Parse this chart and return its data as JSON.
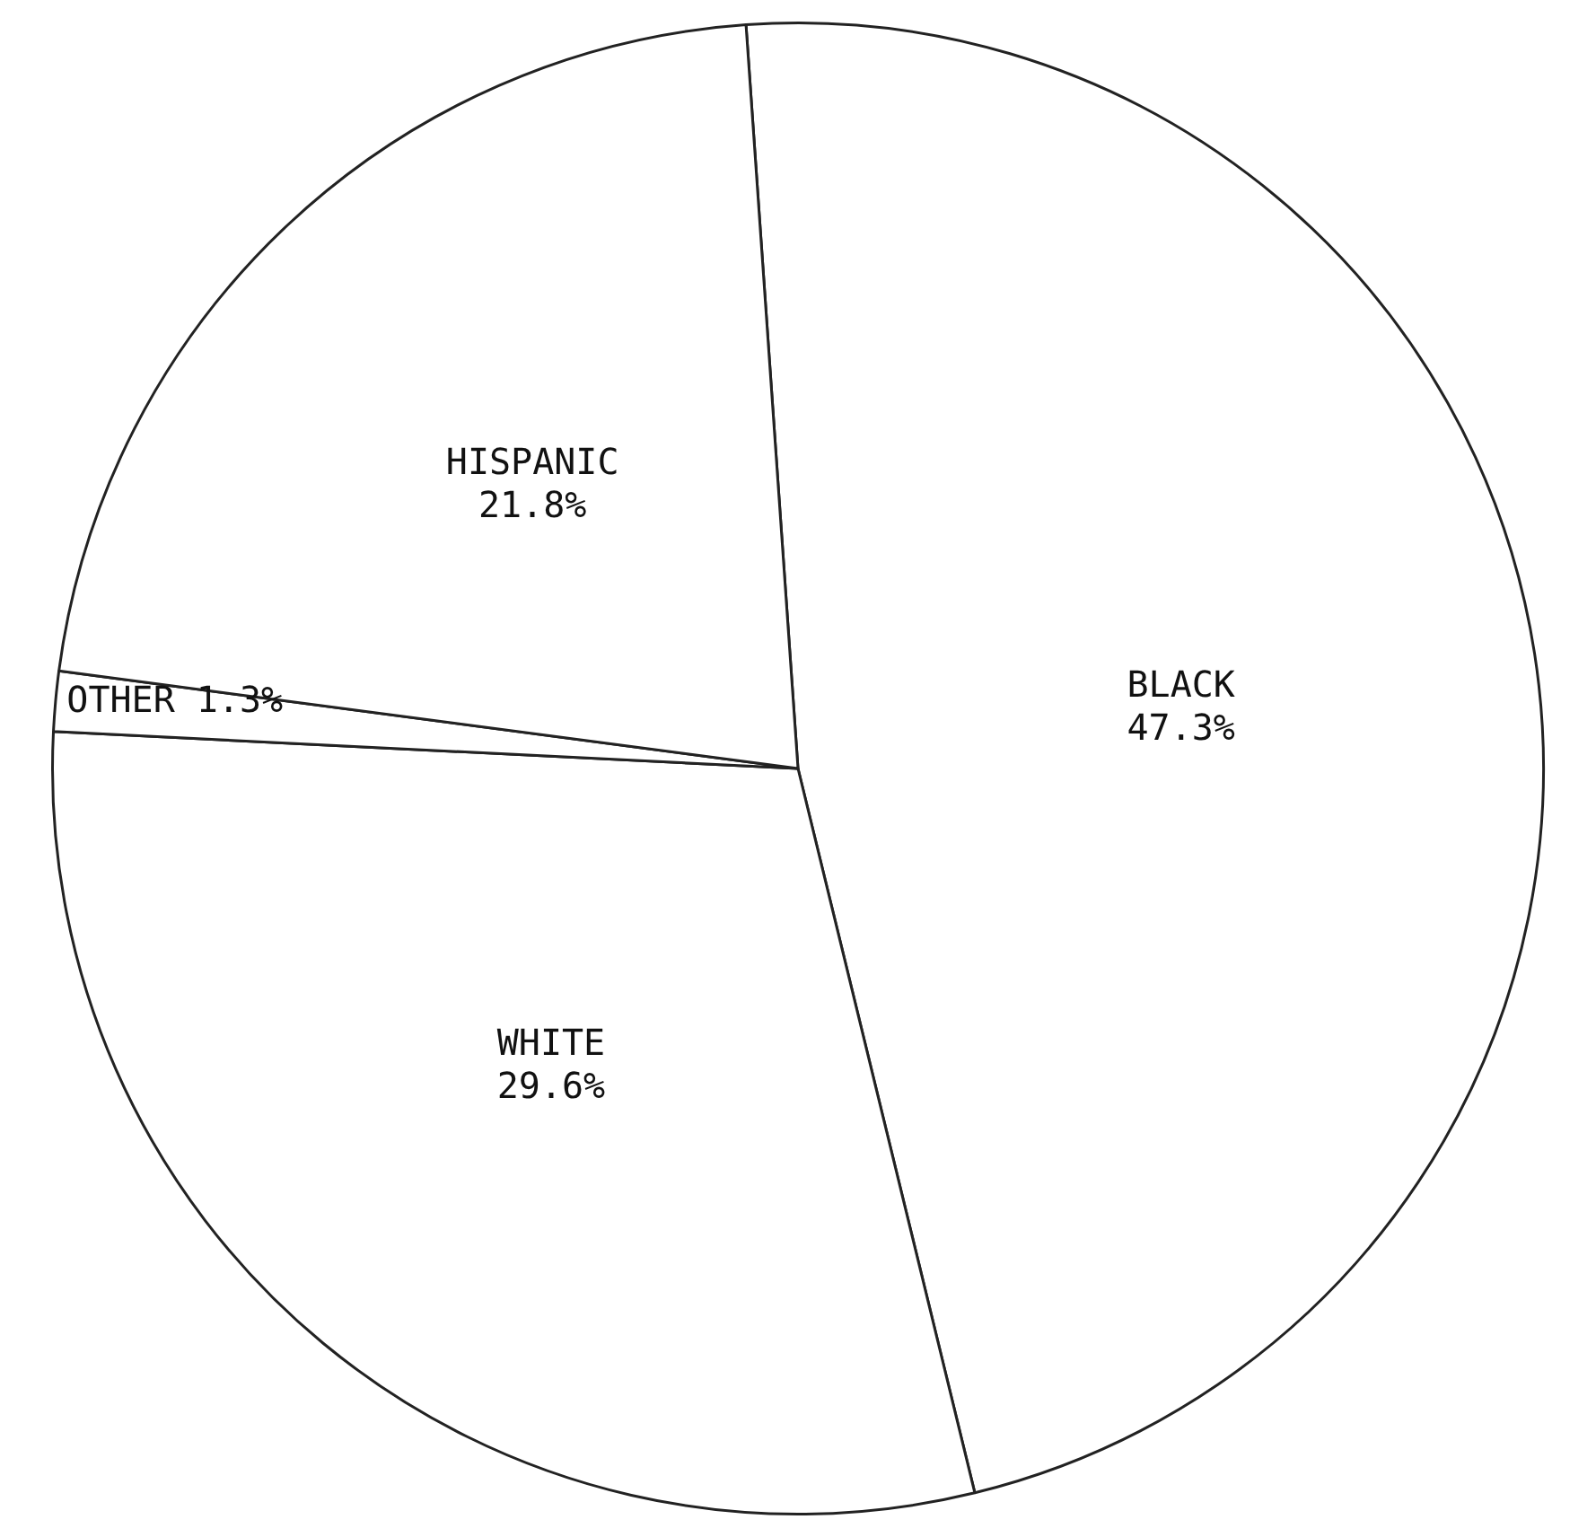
{
  "chart_data": {
    "type": "pie",
    "categories": [
      "BLACK",
      "WHITE",
      "OTHER",
      "HISPANIC"
    ],
    "values": [
      47.3,
      29.6,
      1.3,
      21.8
    ],
    "colors": [
      "#ffffff",
      "#ffffff",
      "#ffffff",
      "#ffffff"
    ],
    "value_labels": [
      "47.3%",
      "29.6%",
      "1.3%",
      "21.8%"
    ],
    "legend": false
  }
}
